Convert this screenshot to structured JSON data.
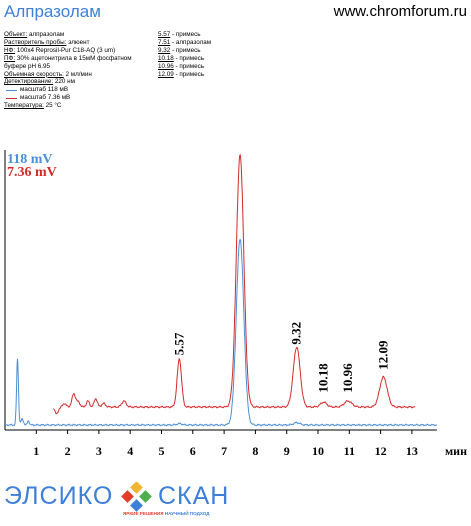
{
  "header": {
    "title": "Алпразолам",
    "site": "www.chromforum.ru"
  },
  "info": {
    "object_label": "Объект:",
    "object_value": "алпразолам",
    "solvent_label": "Растворитель пробы:",
    "solvent_value": "элюент",
    "stationary_label": "НФ:",
    "stationary_value": "100x4 Reprosil-Pur C18-AQ  (3 um)",
    "mobile_label": "ПФ:",
    "mobile_value": "30% ацетонитрила в 15мМ фосфатном",
    "buffer_line": "буфере pH 6.95",
    "flow_label": "Объемная скорость:",
    "flow_value": "2 мл/мин",
    "detection_label": "Детектирование:",
    "detection_value": "220 нм",
    "legend_blue": "масштаб 118 мВ",
    "legend_red": "масштаб 7.36 мВ",
    "temperature_label": "Температура:",
    "temperature_value": "25 °C"
  },
  "peaks_list": [
    {
      "time": "5.57",
      "name": "примесь"
    },
    {
      "time": "7.51",
      "name": "алпразолам"
    },
    {
      "time": "9.32",
      "name": "примесь"
    },
    {
      "time": "10.18",
      "name": "примесь"
    },
    {
      "time": "10.96",
      "name": "примесь"
    },
    {
      "time": "12.09",
      "name": "примесь"
    }
  ],
  "colors": {
    "blue": "#4a8fd8",
    "red": "#d42a2a",
    "title_blue": "#3d7fd9"
  },
  "chart_data": {
    "type": "line",
    "xlabel": "мин",
    "xlim": [
      0,
      13.8
    ],
    "x_ticks": [
      "1",
      "2",
      "3",
      "4",
      "5",
      "6",
      "7",
      "8",
      "9",
      "10",
      "11",
      "12",
      "13"
    ],
    "scale_labels": {
      "blue": "118 mV",
      "red": "7.36 mV"
    },
    "grid": false,
    "legend": "top-left",
    "series": [
      {
        "id": "blue",
        "color": "#4a8fd8",
        "baseline": 0.0,
        "peaks": [
          {
            "t": 0.4,
            "h": 0.55,
            "w": 0.03
          },
          {
            "t": 0.55,
            "h": 0.05,
            "w": 0.04
          },
          {
            "t": 0.75,
            "h": 0.035,
            "w": 0.03
          },
          {
            "t": 5.57,
            "h": 0.012,
            "w": 0.08
          },
          {
            "t": 7.51,
            "h": 1.55,
            "w": 0.12
          },
          {
            "t": 9.32,
            "h": 0.02,
            "w": 0.1
          }
        ]
      },
      {
        "id": "red",
        "color": "#d42a2a",
        "baseline": 0.15,
        "peaks": [
          {
            "t": 1.65,
            "h": -0.06,
            "w": 0.05
          },
          {
            "t": 1.9,
            "h": 0.03,
            "w": 0.05
          },
          {
            "t": 2.2,
            "h": 0.11,
            "w": 0.06
          },
          {
            "t": 2.35,
            "h": 0.04,
            "w": 0.05
          },
          {
            "t": 2.65,
            "h": 0.05,
            "w": 0.05
          },
          {
            "t": 2.9,
            "h": 0.07,
            "w": 0.05
          },
          {
            "t": 3.15,
            "h": 0.03,
            "w": 0.06
          },
          {
            "t": 3.8,
            "h": 0.05,
            "w": 0.07
          },
          {
            "t": 5.57,
            "h": 0.4,
            "w": 0.07
          },
          {
            "t": 7.51,
            "h": 2.1,
            "w": 0.12
          },
          {
            "t": 9.32,
            "h": 0.5,
            "w": 0.11
          },
          {
            "t": 10.18,
            "h": 0.04,
            "w": 0.1
          },
          {
            "t": 10.96,
            "h": 0.05,
            "w": 0.12
          },
          {
            "t": 12.09,
            "h": 0.25,
            "w": 0.12
          }
        ]
      }
    ],
    "peak_labels": [
      {
        "label": "5.57",
        "t": 5.57,
        "h": 0.58
      },
      {
        "label": "7.51",
        "t": 7.51,
        "h": 2.55
      },
      {
        "label": "9.32",
        "t": 9.32,
        "h": 0.67
      },
      {
        "label": "10.18",
        "t": 10.18,
        "h": 0.27
      },
      {
        "label": "10.96",
        "t": 10.96,
        "h": 0.27
      },
      {
        "label": "12.09",
        "t": 12.09,
        "h": 0.46
      }
    ]
  },
  "logo": {
    "part1": "ЭЛСИКО",
    "part2": "СКАН",
    "slogan_a": "ЯРКИЕ РЕШЕНИЯ",
    "slogan_b": "НАУЧНЫЙ ПОДХОД"
  }
}
